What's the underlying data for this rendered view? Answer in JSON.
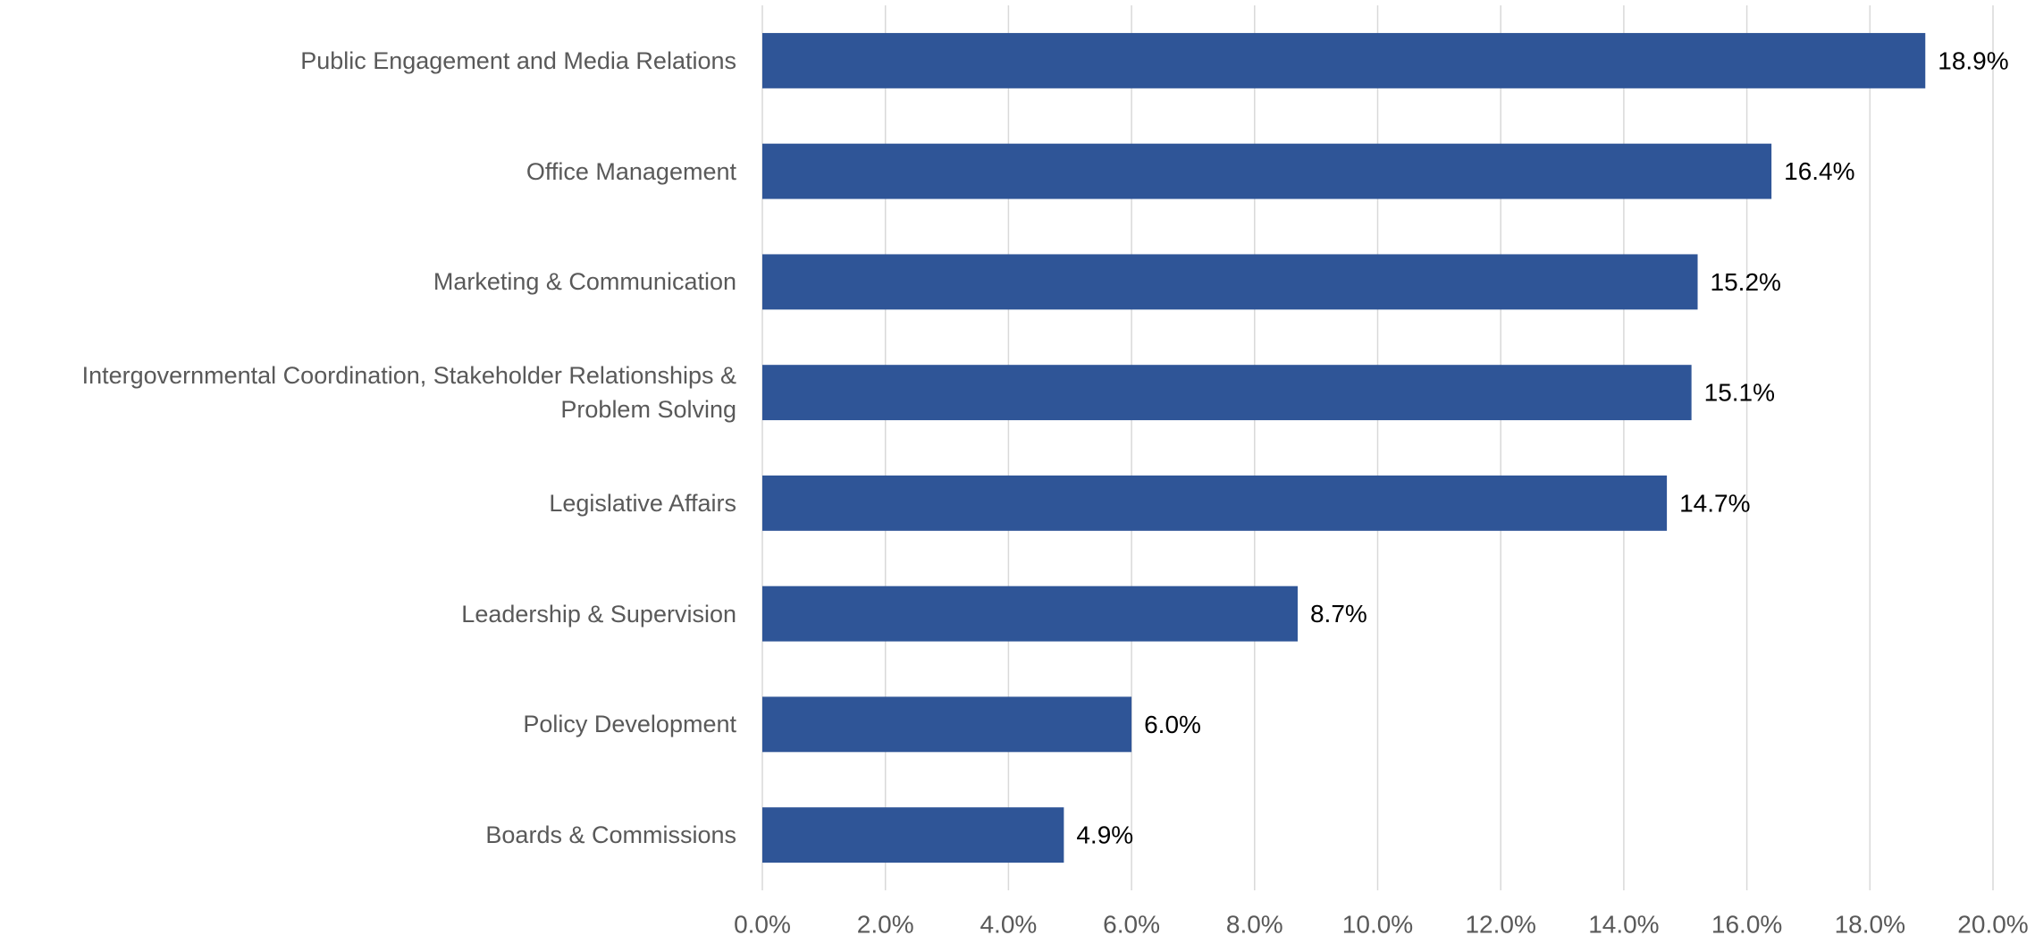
{
  "chart_data": {
    "type": "hbar",
    "categories": [
      "Public Engagement and Media Relations",
      "Office Management",
      "Marketing & Communication",
      "Intergovernmental Coordination, Stakeholder Relationships & Problem Solving",
      "Legislative Affairs",
      "Leadership & Supervision",
      "Policy Development",
      "Boards & Commissions"
    ],
    "values": [
      18.9,
      16.4,
      15.2,
      15.1,
      14.7,
      8.7,
      6.0,
      4.9
    ],
    "value_labels": [
      "18.9%",
      "16.4%",
      "15.2%",
      "15.1%",
      "14.7%",
      "8.7%",
      "6.0%",
      "4.9%"
    ],
    "color": "#2f5597",
    "xlim": [
      0,
      20
    ],
    "xticks": [
      {
        "value": 0,
        "label": "0.0%"
      },
      {
        "value": 2,
        "label": "2.0%"
      },
      {
        "value": 4,
        "label": "4.0%"
      },
      {
        "value": 6,
        "label": "6.0%"
      },
      {
        "value": 8,
        "label": "8.0%"
      },
      {
        "value": 10,
        "label": "10.0%"
      },
      {
        "value": 12,
        "label": "12.0%"
      },
      {
        "value": 14,
        "label": "14.0%"
      },
      {
        "value": 16,
        "label": "16.0%"
      },
      {
        "value": 18,
        "label": "18.0%"
      },
      {
        "value": 20,
        "label": "20.0%"
      }
    ],
    "grid": true
  }
}
